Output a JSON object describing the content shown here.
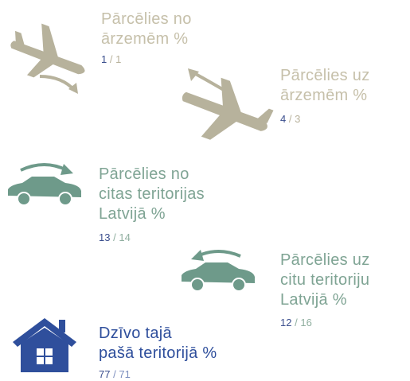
{
  "items": [
    {
      "lines": [
        "Pārcēlies no",
        "ārzemēm %"
      ],
      "first": "1",
      "separator": "/",
      "second": "1"
    },
    {
      "lines": [
        "Pārcēlies uz",
        "ārzemēm %"
      ],
      "first": "4",
      "separator": "/",
      "second": "3"
    },
    {
      "lines": [
        "Pārcēlies no",
        "citas teritorijas",
        "Latvijā %"
      ],
      "first": "13",
      "separator": "/",
      "second": "14"
    },
    {
      "lines": [
        "Pārcēlies uz",
        "citu teritoriju",
        "Latvijā %"
      ],
      "first": "12",
      "separator": "/",
      "second": "16"
    },
    {
      "lines": [
        "Dzīvo tajā",
        "pašā teritorijā %"
      ],
      "first": "77",
      "separator": "/",
      "second": "71"
    }
  ]
}
